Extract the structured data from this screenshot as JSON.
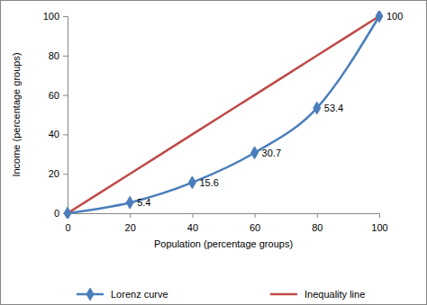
{
  "chart_data": {
    "type": "line",
    "x_label": "Population (percentage groups)",
    "y_label": "Income (percentage groups)",
    "x": [
      0,
      20,
      40,
      60,
      80,
      100
    ],
    "series": [
      {
        "name": "Lorenz curve",
        "color": "#4a7ebb",
        "marker": "diamond",
        "line_style": "solid",
        "values": [
          0,
          5.4,
          15.6,
          30.7,
          53.4,
          100
        ],
        "data_labels": true,
        "value_labels": [
          null,
          "5.4",
          "15.6",
          "30.7",
          "53.4",
          "100"
        ]
      },
      {
        "name": "Inequality line",
        "color": "#be4b48",
        "marker": "none",
        "line_style": "solid",
        "values": [
          0,
          20,
          40,
          60,
          80,
          100
        ]
      }
    ],
    "xlim": [
      0,
      100
    ],
    "xticks": [
      0,
      20,
      40,
      60,
      80,
      100
    ],
    "ylim": [
      0,
      100
    ],
    "yticks": [
      0,
      20,
      40,
      60,
      80,
      100
    ],
    "grid": false,
    "legend": "bottom"
  }
}
